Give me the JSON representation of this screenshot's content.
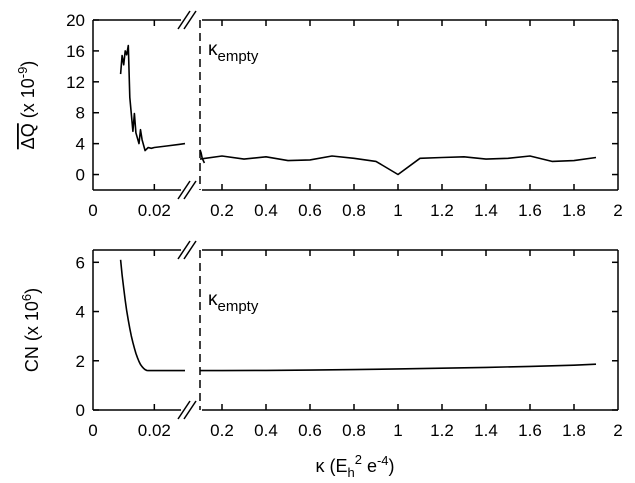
{
  "chart_data": [
    {
      "type": "line",
      "ylabel_parts": [
        "ΔQ",
        " (x 10",
        "-9",
        ")"
      ],
      "ylim": [
        -2,
        20
      ],
      "yticks": [
        0,
        4,
        8,
        12,
        16,
        20
      ],
      "xlim_left": [
        0,
        0.03
      ],
      "xlim_right": [
        0.1,
        2
      ],
      "xticks_left": [
        0,
        0.02
      ],
      "xticks_right": [
        0.2,
        0.4,
        0.6,
        0.8,
        1,
        1.2,
        1.4,
        1.6,
        1.8,
        2
      ],
      "annotation": {
        "main": "κ",
        "sub": "empty"
      },
      "vline_x": 0.1,
      "series": [
        {
          "x": [
            0.009,
            0.0095,
            0.01,
            0.0105,
            0.011,
            0.0115,
            0.012,
            0.013,
            0.0135,
            0.014,
            0.015,
            0.0155,
            0.016,
            0.017,
            0.018,
            0.019,
            0.02,
            0.024,
            0.028,
            0.03
          ],
          "y": [
            13.0,
            15.4,
            14.2,
            16.0,
            15.5,
            16.7,
            10.0,
            5.6,
            7.9,
            5.4,
            4.0,
            5.8,
            4.5,
            3.1,
            3.5,
            3.4,
            3.5,
            3.7,
            3.9,
            4.0
          ]
        },
        {
          "x": [
            0.1,
            0.105,
            0.11,
            0.115,
            0.12
          ],
          "y": [
            3.2,
            2.8,
            2.1,
            1.8,
            1.5
          ]
        },
        {
          "x": [
            0.1,
            0.2,
            0.3,
            0.4,
            0.5,
            0.6,
            0.7,
            0.8,
            0.9,
            1.0,
            1.1,
            1.2,
            1.3,
            1.4,
            1.5,
            1.6,
            1.7,
            1.8,
            1.9
          ],
          "y": [
            2.0,
            2.4,
            2.0,
            2.3,
            1.8,
            1.9,
            2.4,
            2.1,
            1.7,
            0.0,
            2.1,
            2.2,
            2.3,
            2.0,
            2.1,
            2.4,
            1.7,
            1.8,
            2.2
          ]
        }
      ]
    },
    {
      "type": "line",
      "ylabel_parts": [
        "CN",
        " (x 10",
        "6",
        ")"
      ],
      "ylim": [
        0,
        6.5
      ],
      "yticks": [
        0,
        2,
        4,
        6
      ],
      "xlim_left": [
        0,
        0.03
      ],
      "xlim_right": [
        0.1,
        2
      ],
      "xticks_left": [
        0,
        0.02
      ],
      "xticks_right": [
        0.2,
        0.4,
        0.6,
        0.8,
        1,
        1.2,
        1.4,
        1.6,
        1.8,
        2
      ],
      "annotation": {
        "main": "κ",
        "sub": "empty"
      },
      "vline_x": 0.1,
      "xlabel_parts": [
        "κ (E",
        "h",
        "2",
        " e",
        "-4",
        ")"
      ],
      "series": [
        {
          "x": [
            0.009,
            0.0095,
            0.01,
            0.0105,
            0.011,
            0.0115,
            0.012,
            0.0125,
            0.013,
            0.0135,
            0.014,
            0.0145,
            0.015,
            0.0155,
            0.016,
            0.0165,
            0.017,
            0.0175,
            0.018,
            0.0185,
            0.019,
            0.0195,
            0.02,
            0.024,
            0.028,
            0.03
          ],
          "y": [
            6.1,
            5.49,
            4.95,
            4.46,
            4.03,
            3.65,
            3.31,
            3.01,
            2.74,
            2.51,
            2.3,
            2.12,
            1.97,
            1.85,
            1.76,
            1.69,
            1.64,
            1.61,
            1.6,
            1.6,
            1.6,
            1.6,
            1.6,
            1.6,
            1.6,
            1.6
          ]
        },
        {
          "x": [
            0.1,
            0.2,
            0.4,
            0.6,
            0.8,
            1.0,
            1.2,
            1.4,
            1.6,
            1.8,
            1.9
          ],
          "y": [
            1.6,
            1.6,
            1.61,
            1.62,
            1.64,
            1.67,
            1.7,
            1.73,
            1.77,
            1.82,
            1.86
          ]
        }
      ]
    }
  ]
}
